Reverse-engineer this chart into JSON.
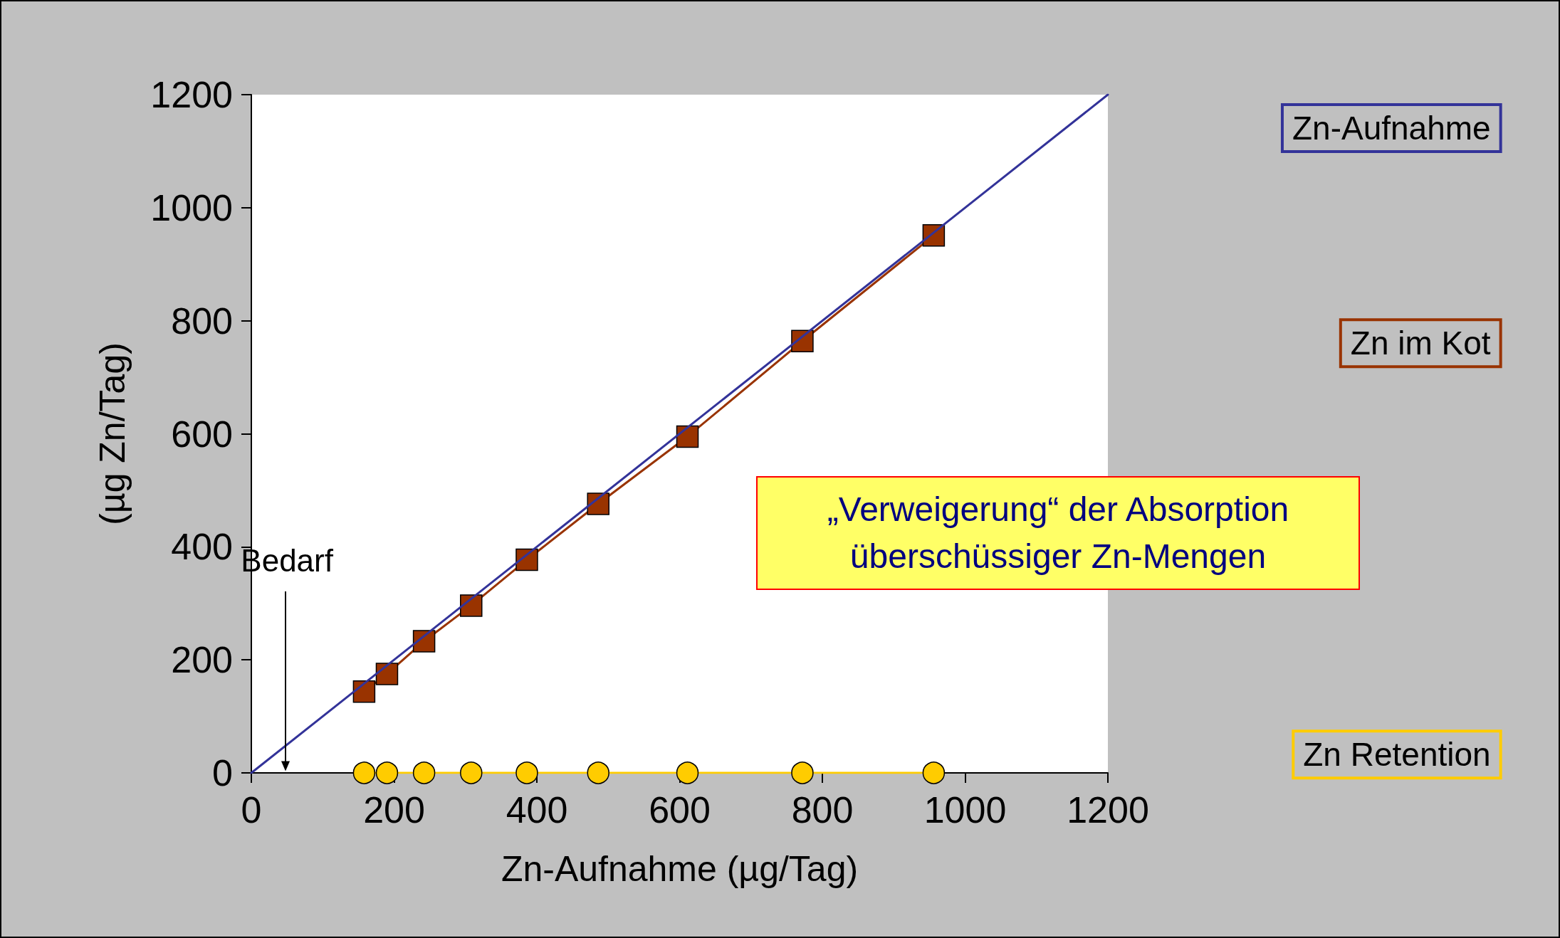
{
  "chart_data": {
    "type": "line",
    "xlabel": "Zn-Aufnahme (µg/Tag)",
    "ylabel": "(µg Zn/Tag)",
    "xlim": [
      0,
      1200
    ],
    "xticks": [
      0,
      200,
      400,
      600,
      800,
      1000,
      1200
    ],
    "ylim": [
      0,
      1200
    ],
    "yticks": [
      0,
      200,
      400,
      600,
      800,
      1000,
      1200
    ],
    "grid": false,
    "legend": "right",
    "line_style": "solid",
    "series": [
      {
        "name": "Zn-Aufnahme",
        "color": "#333399",
        "marker": "none",
        "x": [
          0,
          1200
        ],
        "values": [
          0,
          1200
        ]
      },
      {
        "name": "Zn im Kot",
        "color": "#993300",
        "marker": "square",
        "x": [
          158,
          190,
          242,
          308,
          386,
          486,
          611,
          772,
          956
        ],
        "values": [
          144,
          175,
          233,
          296,
          377,
          476,
          595,
          764,
          951
        ]
      },
      {
        "name": "Zn Retention",
        "color": "#ffcc00",
        "marker": "circle",
        "x": [
          158,
          190,
          242,
          308,
          386,
          486,
          611,
          772,
          956
        ],
        "values": [
          0,
          0,
          0,
          0,
          0,
          0,
          0,
          0,
          0
        ]
      }
    ],
    "ref_lines": [
      {
        "axis": "x",
        "value": 50,
        "label": "Bedarf",
        "color": "#000000"
      }
    ],
    "annotations": [
      "„Verweigerung“ der Absorption überschüssiger Zn-Mengen"
    ]
  }
}
